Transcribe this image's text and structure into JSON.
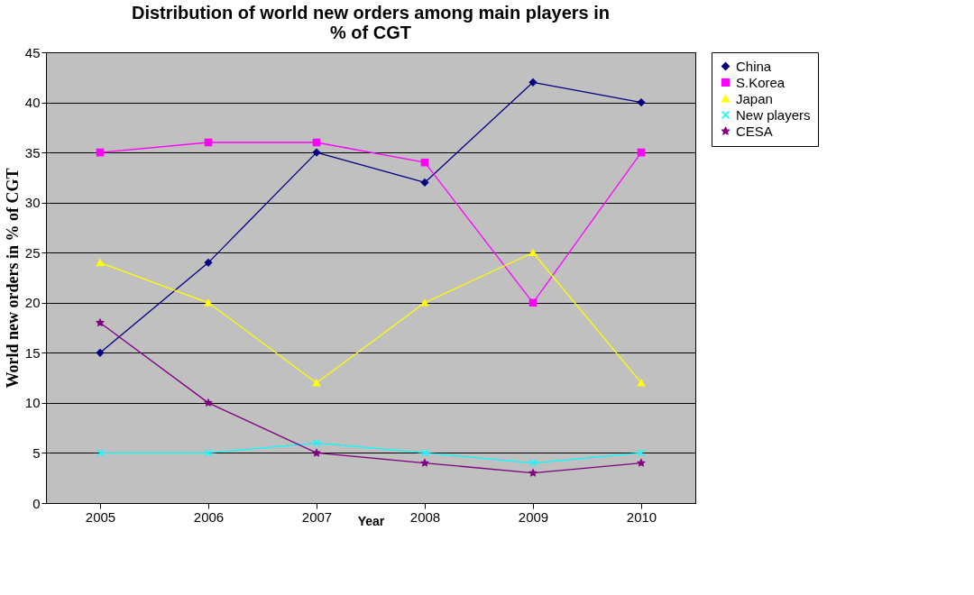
{
  "chart_data": {
    "type": "line",
    "title": "Distribution of world new orders among main players in % of CGT",
    "xlabel": "Year",
    "ylabel": "World new orders in % of CGT",
    "categories": [
      "2005",
      "2006",
      "2007",
      "2008",
      "2009",
      "2010"
    ],
    "series": [
      {
        "name": "China",
        "color": "#000080",
        "marker": "diamond",
        "values": [
          15,
          24,
          35,
          32,
          42,
          40
        ]
      },
      {
        "name": "S.Korea",
        "color": "#ff00ff",
        "marker": "square",
        "values": [
          35,
          36,
          36,
          34,
          20,
          35
        ]
      },
      {
        "name": "Japan",
        "color": "#ffff00",
        "marker": "triangle",
        "values": [
          24,
          20,
          12,
          20,
          25,
          12
        ]
      },
      {
        "name": "New players",
        "color": "#00ffff",
        "marker": "cross",
        "values": [
          5,
          5,
          6,
          5,
          4,
          5
        ]
      },
      {
        "name": "CESA",
        "color": "#800080",
        "marker": "star",
        "values": [
          18,
          10,
          5,
          4,
          3,
          4
        ]
      }
    ],
    "ylim": [
      0,
      45
    ],
    "yticks": [
      0,
      5,
      10,
      15,
      20,
      25,
      30,
      35,
      40,
      45
    ],
    "grid": "y",
    "legend": "right",
    "line_style": "solid"
  }
}
